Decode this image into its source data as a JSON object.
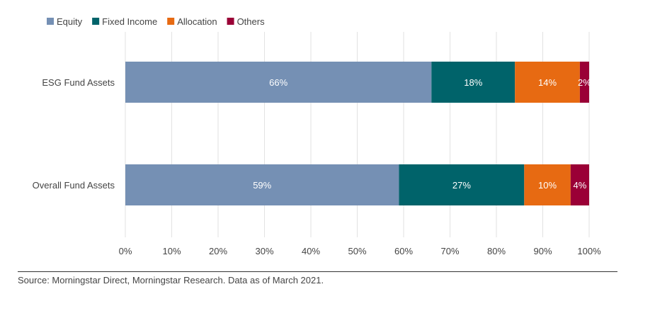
{
  "chart_data": {
    "type": "bar",
    "orientation": "horizontal",
    "stacked": true,
    "categories": [
      "ESG Fund Assets",
      "Overall Fund Assets"
    ],
    "series": [
      {
        "name": "Equity",
        "color": "#7590b4",
        "values": [
          66,
          59
        ]
      },
      {
        "name": "Fixed Income",
        "color": "#00636a",
        "values": [
          18,
          27
        ]
      },
      {
        "name": "Allocation",
        "color": "#e76a12",
        "values": [
          14,
          10
        ]
      },
      {
        "name": "Others",
        "color": "#9a0036",
        "values": [
          2,
          4
        ]
      }
    ],
    "xlim": [
      0,
      100
    ],
    "xticks": [
      "0%",
      "10%",
      "20%",
      "30%",
      "40%",
      "50%",
      "60%",
      "70%",
      "80%",
      "90%",
      "100%"
    ],
    "grid": true,
    "legend": "top-left",
    "data_labels": true
  },
  "source": "Source: Morningstar Direct, Morningstar Research. Data as of March 2021."
}
